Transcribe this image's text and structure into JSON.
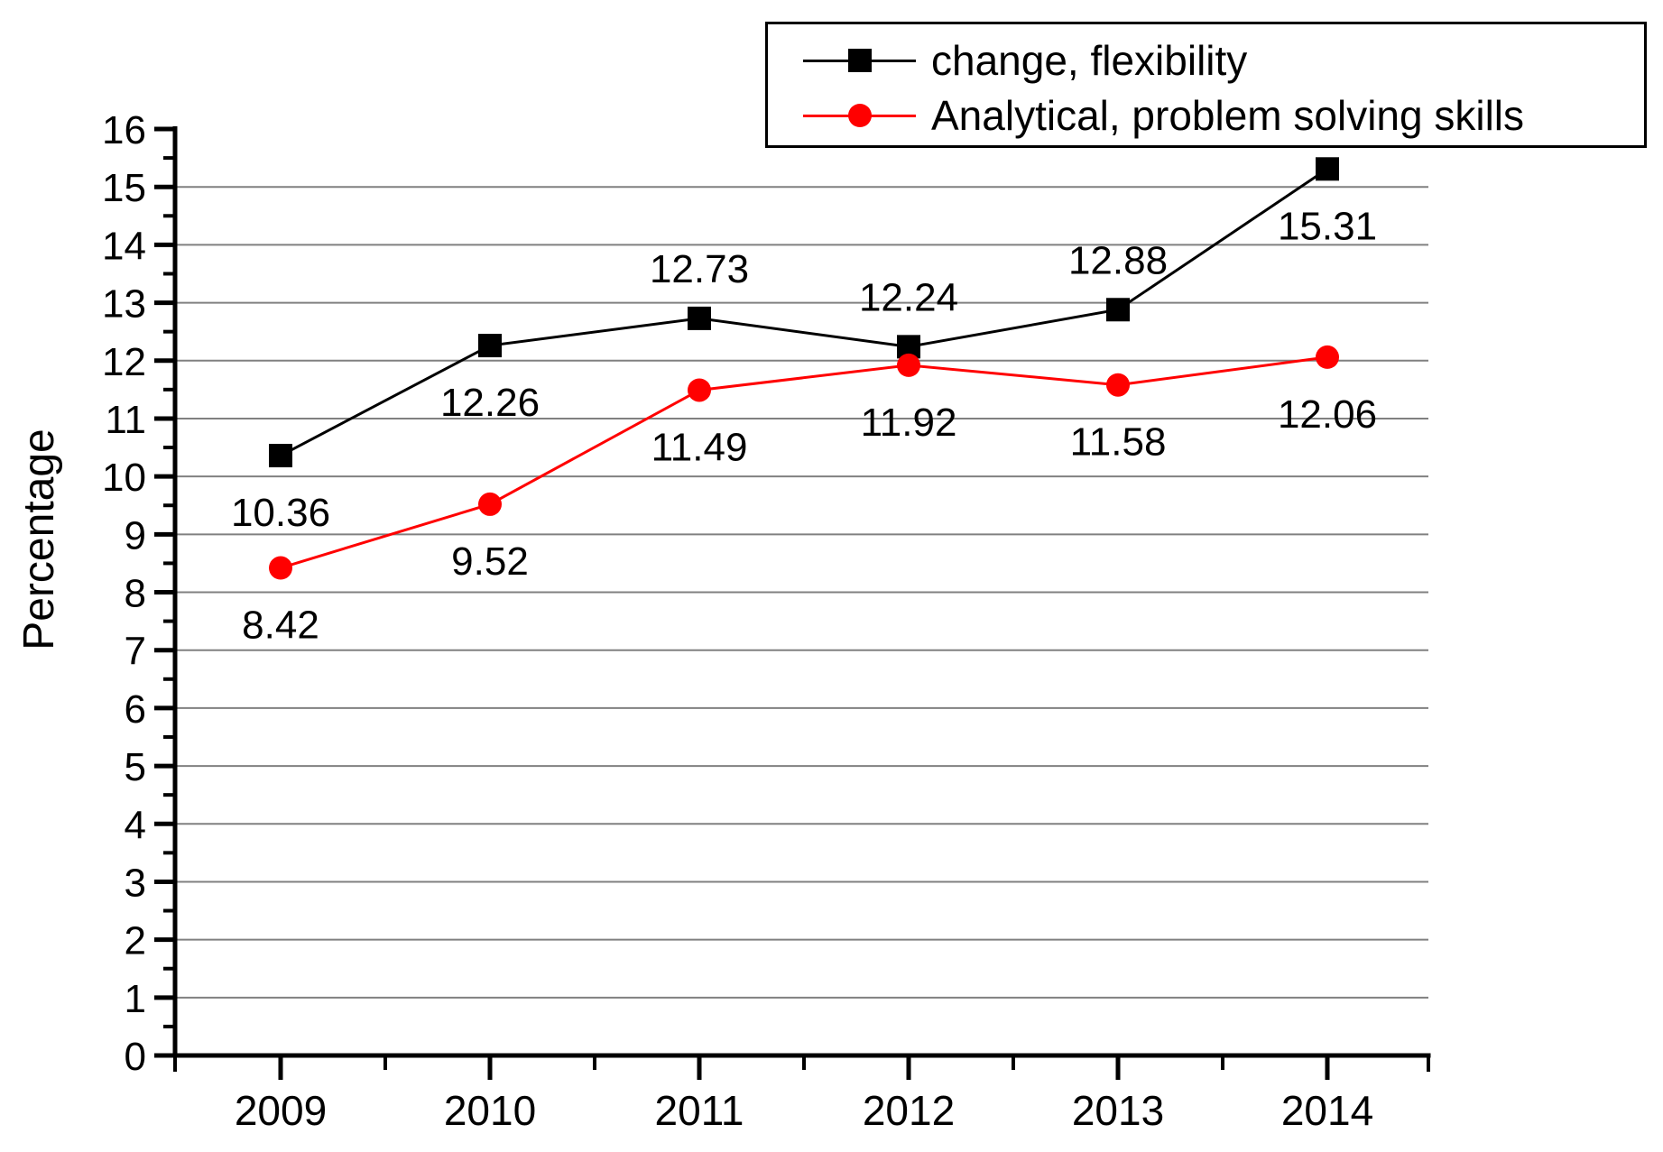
{
  "chart_data": {
    "type": "line",
    "title": "",
    "xlabel": "",
    "ylabel": "Percentage",
    "categories": [
      "2009",
      "2010",
      "2011",
      "2012",
      "2013",
      "2014"
    ],
    "ylim": [
      0,
      16
    ],
    "y_major_tick_step": 1,
    "y_minor_tick_step": 0.5,
    "y_tick_labels": [
      "0",
      "1",
      "2",
      "3",
      "4",
      "5",
      "6",
      "7",
      "8",
      "9",
      "10",
      "11",
      "12",
      "13",
      "14",
      "15",
      "16"
    ],
    "grid": {
      "horizontal": true,
      "at": [
        1,
        2,
        3,
        4,
        5,
        6,
        7,
        8,
        9,
        10,
        11,
        12,
        13,
        14,
        15
      ],
      "color": "#808080"
    },
    "legend": {
      "position": "top-right",
      "border": true
    },
    "series": [
      {
        "name": "change, flexibility",
        "color": "#000000",
        "marker": "square",
        "values": [
          10.36,
          12.26,
          12.73,
          12.24,
          12.88,
          15.31
        ],
        "data_labels": [
          "10.36",
          "12.26",
          "12.73",
          "12.24",
          "12.88",
          "15.31"
        ],
        "label_placement": [
          "below",
          "below",
          "above",
          "above",
          "above",
          "below"
        ]
      },
      {
        "name": "Analytical, problem solving skills",
        "color": "#ff0000",
        "marker": "circle",
        "values": [
          8.42,
          9.52,
          11.49,
          11.92,
          11.58,
          12.06
        ],
        "data_labels": [
          "8.42",
          "9.52",
          "11.49",
          "11.92",
          "11.58",
          "12.06"
        ],
        "label_placement": [
          "below",
          "below",
          "below",
          "below",
          "below",
          "below"
        ]
      }
    ],
    "colors": {
      "axis": "#000000",
      "background": "#ffffff",
      "text": "#000000"
    }
  }
}
